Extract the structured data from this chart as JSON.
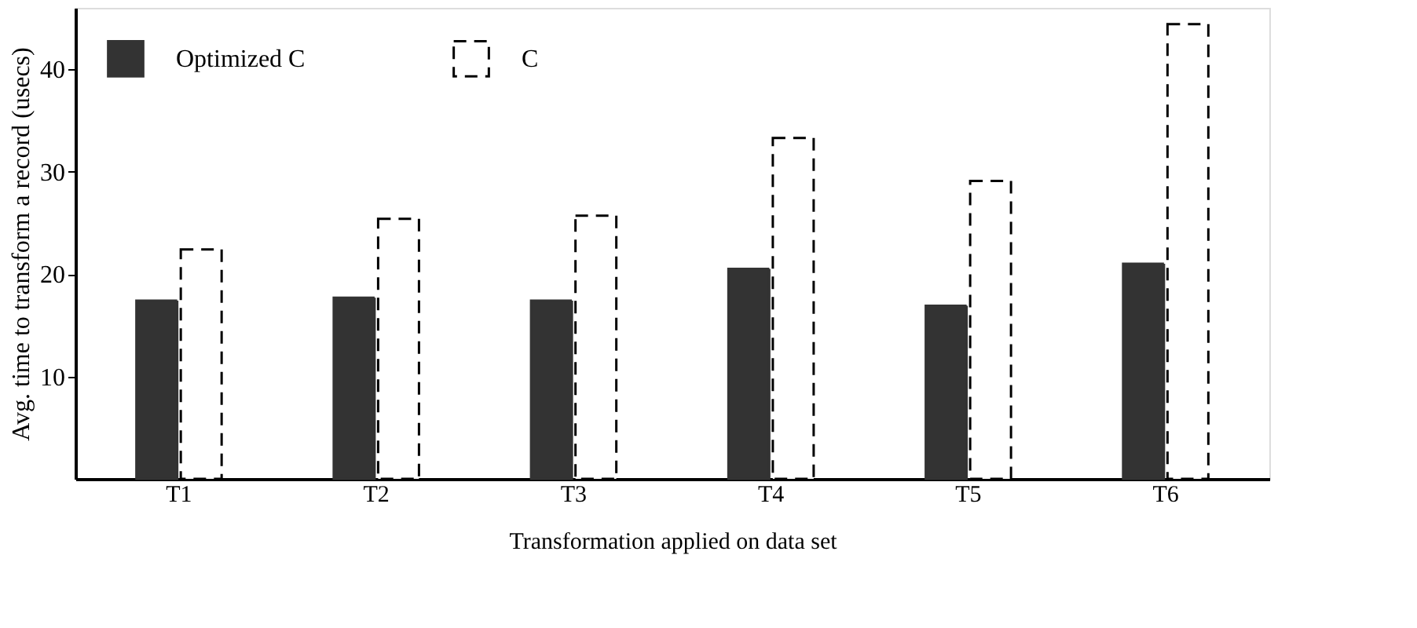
{
  "chart_data": {
    "type": "bar",
    "xlabel": "Transformation applied on data set",
    "ylabel": "Avg. time to transform a record (usecs)",
    "categories": [
      "T1",
      "T2",
      "T3",
      "T4",
      "T5",
      "T6"
    ],
    "series": [
      {
        "name": "Optimized C",
        "color": "#333333",
        "values": [
          17.4,
          17.7,
          17.4,
          20.5,
          16.9,
          21.0
        ]
      },
      {
        "name": "C",
        "color": "#ffffff",
        "line_style": "dashed",
        "values": [
          22.4,
          25.4,
          25.7,
          33.3,
          29.1,
          44.4
        ]
      }
    ],
    "ylim": [
      0,
      46
    ],
    "yticks": [
      10,
      20,
      30,
      40
    ],
    "grid": false,
    "legend": "top left"
  }
}
